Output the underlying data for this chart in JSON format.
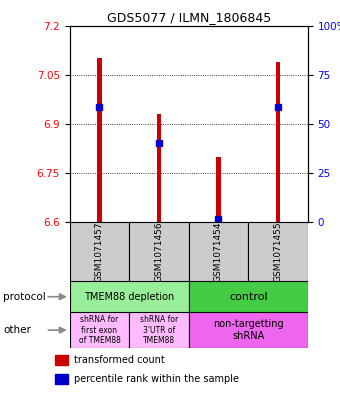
{
  "title": "GDS5077 / ILMN_1806845",
  "samples": [
    "GSM1071457",
    "GSM1071456",
    "GSM1071454",
    "GSM1071455"
  ],
  "transformed_counts": [
    7.1,
    6.93,
    6.8,
    7.09
  ],
  "percentile_ranks": [
    6.95,
    6.84,
    6.61,
    6.95
  ],
  "ylim_left": [
    6.6,
    7.2
  ],
  "yticks_left": [
    6.6,
    6.75,
    6.9,
    7.05,
    7.2
  ],
  "yticks_right": [
    0,
    25,
    50,
    75,
    100
  ],
  "bar_color": "#cc0000",
  "percentile_color": "#0000cc",
  "legend_red": "transformed count",
  "legend_blue": "percentile rank within the sample",
  "bar_width": 0.08,
  "label_protocol": "protocol",
  "label_other": "other",
  "protocol_labels": [
    "TMEM88 depletion",
    "control"
  ],
  "protocol_bg": [
    "#99ee99",
    "#44cc44"
  ],
  "other_labels_0": "shRNA for\nfirst exon\nof TMEM88",
  "other_labels_1": "shRNA for\n3'UTR of\nTMEM88",
  "other_labels_2": "non-targetting\nshRNA",
  "other_bg_01": "#ffbbff",
  "other_bg_2": "#ee66ee",
  "gray": "#cccccc"
}
